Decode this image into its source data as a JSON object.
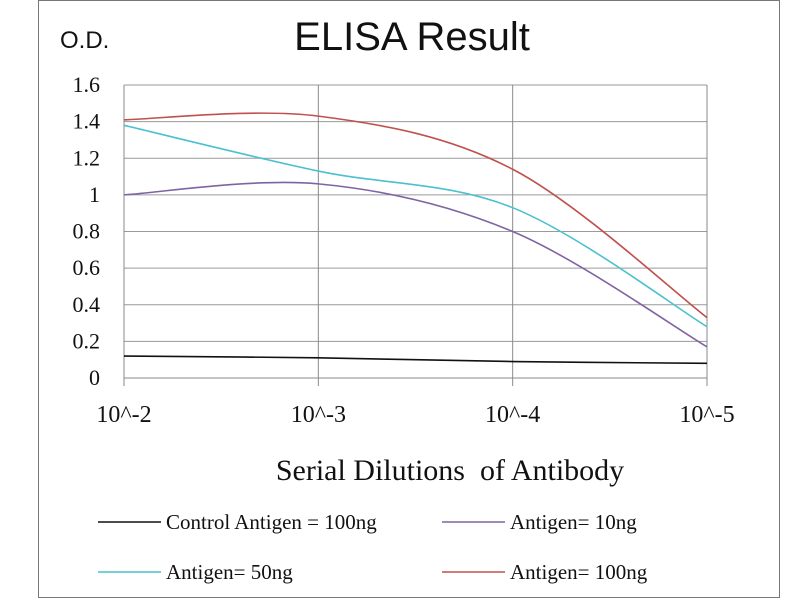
{
  "chart_data": {
    "type": "line",
    "title": "ELISA Result",
    "ylabel": "O.D.",
    "xlabel": "Serial Dilutions  of Antibody",
    "categories": [
      "10^-2",
      "10^-3",
      "10^-4",
      "10^-5"
    ],
    "ylim": [
      0,
      1.6
    ],
    "yticks": [
      "0",
      "0.2",
      "0.4",
      "0.6",
      "0.8",
      "1",
      "1.2",
      "1.4",
      "1.6"
    ],
    "grid": true,
    "legend_position": "bottom",
    "series": [
      {
        "name": "Control Antigen = 100ng",
        "color": "#111111",
        "values": [
          0.12,
          0.11,
          0.09,
          0.08
        ]
      },
      {
        "name": "Antigen= 10ng",
        "color": "#8064a2",
        "values": [
          1.0,
          1.06,
          0.8,
          0.17
        ]
      },
      {
        "name": "Antigen= 50ng",
        "color": "#4bc0cf",
        "values": [
          1.38,
          1.13,
          0.93,
          0.28
        ]
      },
      {
        "name": "Antigen= 100ng",
        "color": "#c0504d",
        "values": [
          1.41,
          1.43,
          1.14,
          0.33
        ]
      }
    ]
  }
}
